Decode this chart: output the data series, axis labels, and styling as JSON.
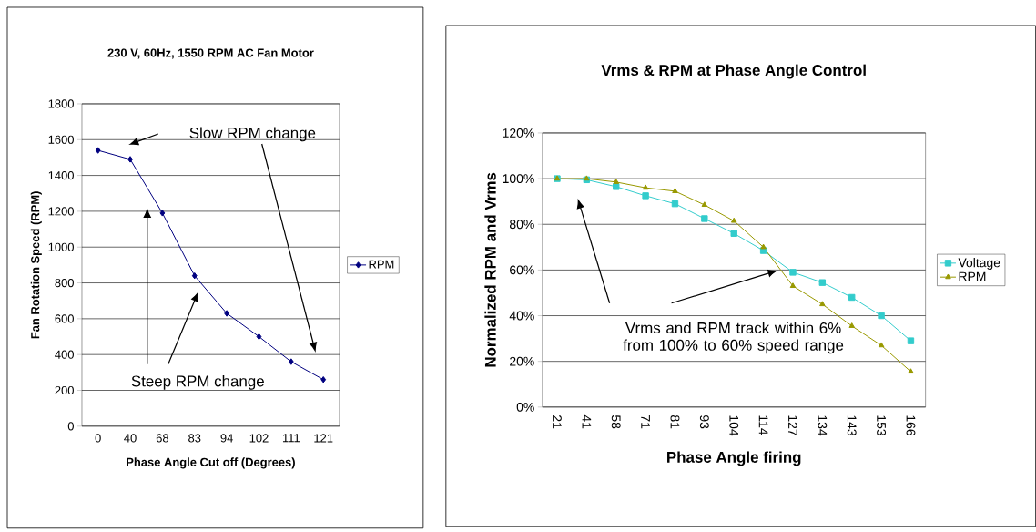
{
  "chart_data": [
    {
      "type": "line",
      "title": "230 V, 60Hz, 1550 RPM AC Fan Motor",
      "xlabel": "Phase Angle Cut off (Degrees)",
      "ylabel": "Fan Rotation Speed (RPM)",
      "categories": [
        "0",
        "40",
        "68",
        "83",
        "94",
        "102",
        "111",
        "121"
      ],
      "series": [
        {
          "name": "RPM",
          "color": "#000080",
          "marker": "diamond",
          "values": [
            1540,
            1490,
            1190,
            840,
            630,
            500,
            360,
            260
          ]
        }
      ],
      "ylim": [
        0,
        1800
      ],
      "yticks": [
        0,
        200,
        400,
        600,
        800,
        1000,
        1200,
        1400,
        1600,
        1800
      ],
      "grid": "y",
      "legend": "right",
      "annotations": [
        "Slow RPM change",
        "Steep RPM change"
      ]
    },
    {
      "type": "line",
      "title": "Vrms & RPM at Phase Angle Control",
      "xlabel": "Phase Angle firing",
      "ylabel": "Normalized RPM and Vrms",
      "categories": [
        "21",
        "41",
        "58",
        "71",
        "81",
        "93",
        "104",
        "114",
        "127",
        "134",
        "143",
        "153",
        "166"
      ],
      "series": [
        {
          "name": "Voltage",
          "color": "#33cccc",
          "marker": "square",
          "values": [
            100,
            99.5,
            96.5,
            92.5,
            89,
            82.5,
            76,
            68.5,
            59,
            54.5,
            48,
            40,
            29
          ]
        },
        {
          "name": "RPM",
          "color": "#999900",
          "marker": "triangle",
          "values": [
            100,
            100,
            98.5,
            96,
            94.5,
            88.5,
            81.5,
            70,
            53,
            45,
            35.5,
            27,
            15.5
          ]
        }
      ],
      "ylim": [
        0,
        120
      ],
      "yticks": [
        {
          "value": 0,
          "label": "0%"
        },
        {
          "value": 20,
          "label": "20%"
        },
        {
          "value": 40,
          "label": "40%"
        },
        {
          "value": 60,
          "label": "60%"
        },
        {
          "value": 80,
          "label": "80%"
        },
        {
          "value": 100,
          "label": "100%"
        },
        {
          "value": 120,
          "label": "120%"
        }
      ],
      "grid": "y",
      "legend": "right",
      "annotations": [
        "Vrms and RPM  track within 6% from 100% to 60% speed range"
      ]
    }
  ]
}
